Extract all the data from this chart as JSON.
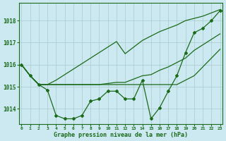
{
  "hours": [
    0,
    1,
    2,
    3,
    4,
    5,
    6,
    7,
    8,
    9,
    10,
    11,
    12,
    13,
    14,
    15,
    16,
    17,
    18,
    19,
    20,
    21,
    22,
    23
  ],
  "line_instant": [
    1016.0,
    1015.5,
    1015.1,
    1014.85,
    1013.7,
    1013.55,
    1013.55,
    1013.7,
    1014.35,
    1014.45,
    1014.8,
    1014.8,
    1014.45,
    1014.45,
    1015.3,
    1013.55,
    1014.05,
    1014.8,
    1015.5,
    1016.55,
    1017.45,
    1017.65,
    1018.0,
    1018.45
  ],
  "line_max": [
    1016.0,
    1015.5,
    1015.1,
    1015.1,
    1015.3,
    1015.55,
    1015.8,
    1016.05,
    1016.3,
    1016.55,
    1016.8,
    1017.05,
    1016.5,
    1016.8,
    1017.1,
    1017.3,
    1017.5,
    1017.65,
    1017.8,
    1018.0,
    1018.1,
    1018.2,
    1018.35,
    1018.5
  ],
  "line_min": [
    1016.0,
    1015.5,
    1015.1,
    1015.1,
    1015.1,
    1015.1,
    1015.1,
    1015.1,
    1015.1,
    1015.1,
    1015.1,
    1015.1,
    1015.1,
    1015.1,
    1015.1,
    1015.1,
    1015.1,
    1015.1,
    1015.1,
    1015.3,
    1015.5,
    1015.9,
    1016.3,
    1016.7
  ],
  "line_avg": [
    1016.0,
    1015.5,
    1015.1,
    1015.1,
    1015.1,
    1015.1,
    1015.1,
    1015.1,
    1015.1,
    1015.1,
    1015.15,
    1015.2,
    1015.2,
    1015.35,
    1015.5,
    1015.55,
    1015.75,
    1015.9,
    1016.1,
    1016.3,
    1016.65,
    1016.9,
    1017.15,
    1017.4
  ],
  "line_color": "#1a6b1a",
  "bg_color": "#cce8f0",
  "grid_color": "#a8cccc",
  "ylim_min": 1013.3,
  "ylim_max": 1018.8,
  "yticks": [
    1014,
    1015,
    1016,
    1017,
    1018
  ],
  "xlabel": "Graphe pression niveau de la mer (hPa)",
  "marker_size": 2.0,
  "line_width": 0.9
}
